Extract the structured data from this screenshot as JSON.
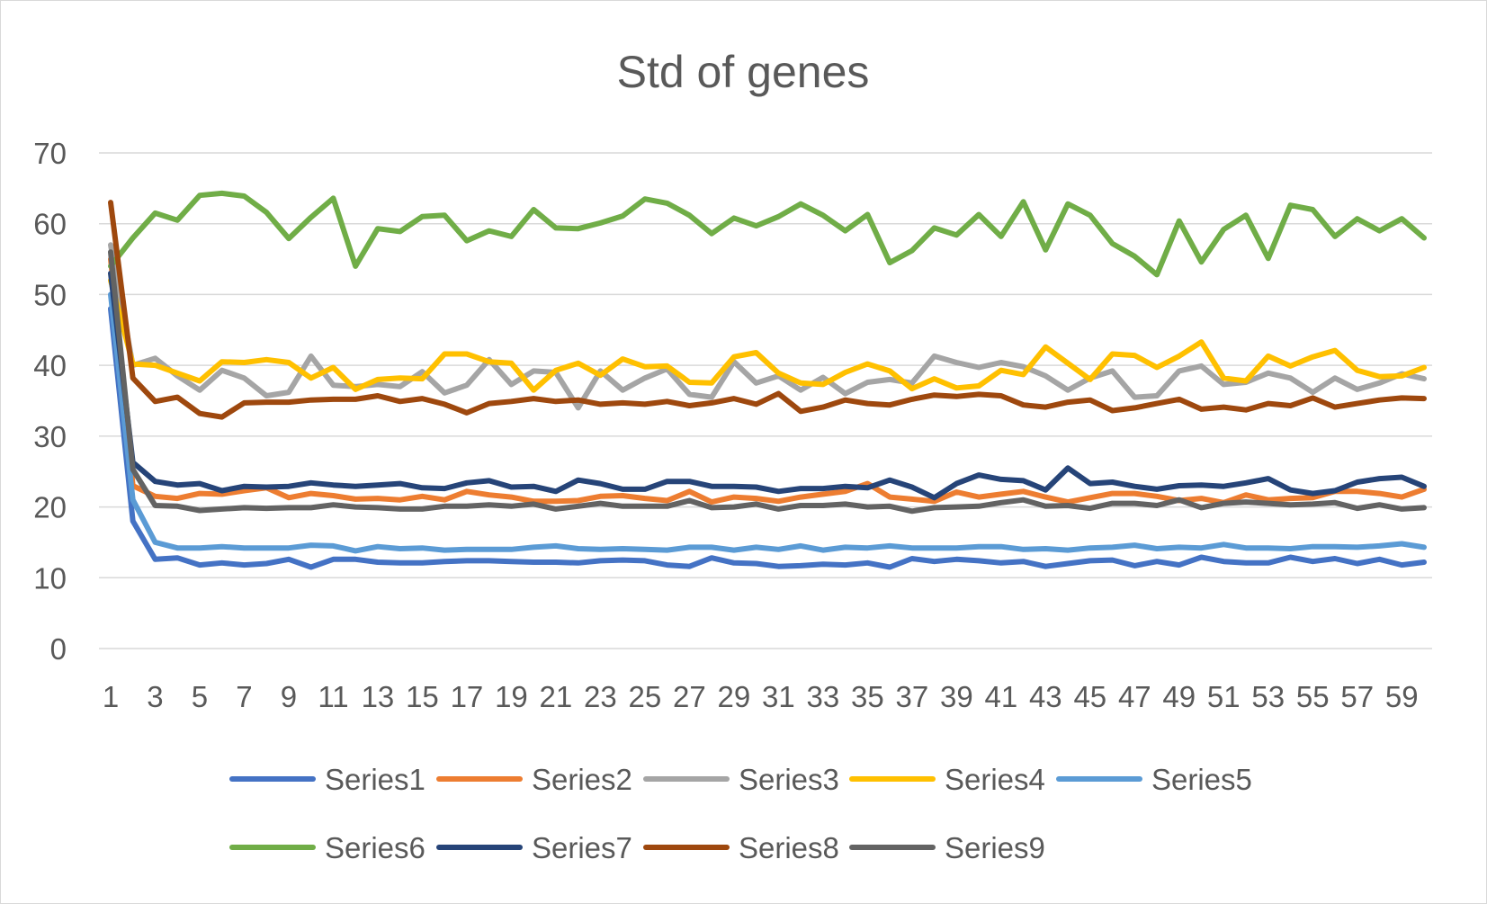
{
  "chart_data": {
    "type": "line",
    "title": "Std of genes",
    "xlabel": "",
    "ylabel": "",
    "ylim": [
      0,
      70
    ],
    "y_ticks": [
      0,
      10,
      20,
      30,
      40,
      50,
      60,
      70
    ],
    "x": [
      1,
      2,
      3,
      4,
      5,
      6,
      7,
      8,
      9,
      10,
      11,
      12,
      13,
      14,
      15,
      16,
      17,
      18,
      19,
      20,
      21,
      22,
      23,
      24,
      25,
      26,
      27,
      28,
      29,
      30,
      31,
      32,
      33,
      34,
      35,
      36,
      37,
      38,
      39,
      40,
      41,
      42,
      43,
      44,
      45,
      46,
      47,
      48,
      49,
      50,
      51,
      52,
      53,
      54,
      55,
      56,
      57,
      58,
      59,
      60
    ],
    "x_tick_labels": [
      "1",
      "3",
      "5",
      "7",
      "9",
      "11",
      "13",
      "15",
      "17",
      "19",
      "21",
      "23",
      "25",
      "27",
      "29",
      "31",
      "33",
      "35",
      "37",
      "39",
      "41",
      "43",
      "45",
      "47",
      "49",
      "51",
      "53",
      "55",
      "57",
      "59"
    ],
    "grid": true,
    "legend_position": "bottom",
    "series": [
      {
        "name": "Series1",
        "color": "#4472C4",
        "values": [
          48,
          18,
          12.6,
          12.8,
          11.8,
          12.1,
          11.8,
          12,
          12.6,
          11.5,
          12.6,
          12.6,
          12.2,
          12.1,
          12.1,
          12.3,
          12.4,
          12.4,
          12.3,
          12.2,
          12.2,
          12.1,
          12.4,
          12.5,
          12.4,
          11.8,
          11.6,
          12.8,
          12.1,
          12,
          11.6,
          11.7,
          11.9,
          11.8,
          12.1,
          11.5,
          12.7,
          12.3,
          12.6,
          12.4,
          12.1,
          12.3,
          11.6,
          12,
          12.4,
          12.5,
          11.7,
          12.3,
          11.8,
          12.9,
          12.3,
          12.1,
          12.1,
          12.9,
          12.3,
          12.7,
          12,
          12.6,
          11.8,
          12.2
        ]
      },
      {
        "name": "Series2",
        "color": "#ED7D31",
        "values": [
          55,
          23,
          21.5,
          21.2,
          21.9,
          21.8,
          22.3,
          22.7,
          21.3,
          21.9,
          21.6,
          21.1,
          21.2,
          21,
          21.5,
          21,
          22.2,
          21.7,
          21.4,
          20.8,
          20.8,
          20.9,
          21.5,
          21.6,
          21.2,
          20.9,
          22.2,
          20.7,
          21.4,
          21.2,
          20.8,
          21.4,
          21.8,
          22.2,
          23.3,
          21.4,
          21.1,
          20.8,
          22.1,
          21.4,
          21.8,
          22.2,
          21.4,
          20.7,
          21.3,
          21.9,
          21.9,
          21.5,
          20.9,
          21.2,
          20.6,
          21.7,
          21,
          21.2,
          21.3,
          22.2,
          22.2,
          21.9,
          21.4,
          22.5
        ]
      },
      {
        "name": "Series3",
        "color": "#A5A5A5",
        "values": [
          57,
          40,
          41,
          38.5,
          36.5,
          39.3,
          38.2,
          35.7,
          36.2,
          41.3,
          37.2,
          37,
          37.3,
          37,
          39.1,
          36.1,
          37.2,
          40.8,
          37.3,
          39.2,
          39,
          34,
          39.2,
          36.5,
          38.2,
          39.5,
          35.9,
          35.5,
          40.5,
          37.5,
          38.5,
          36.5,
          38.3,
          36,
          37.6,
          38,
          37.5,
          41.3,
          40.4,
          39.7,
          40.4,
          39.8,
          38.5,
          36.5,
          38.2,
          39.2,
          35.5,
          35.7,
          39.2,
          39.9,
          37.3,
          37.6,
          38.9,
          38.2,
          36.2,
          38.2,
          36.6,
          37.5,
          38.8,
          38.1
        ]
      },
      {
        "name": "Series4",
        "color": "#FFC000",
        "values": [
          52,
          40.2,
          40,
          38.9,
          37.8,
          40.5,
          40.4,
          40.8,
          40.4,
          38.2,
          39.7,
          36.6,
          38,
          38.2,
          38.1,
          41.6,
          41.6,
          40.5,
          40.3,
          36.5,
          39.3,
          40.3,
          38.6,
          40.9,
          39.8,
          39.9,
          37.6,
          37.5,
          41.2,
          41.8,
          38.9,
          37.5,
          37.3,
          39,
          40.2,
          39.2,
          36.7,
          38.1,
          36.8,
          37.1,
          39.3,
          38.7,
          42.6,
          40.3,
          38,
          41.6,
          41.4,
          39.7,
          41.3,
          43.3,
          38.2,
          37.8,
          41.3,
          39.9,
          41.2,
          42.1,
          39.3,
          38.4,
          38.5,
          39.7
        ]
      },
      {
        "name": "Series5",
        "color": "#5B9BD5",
        "values": [
          50,
          21,
          15,
          14.2,
          14.2,
          14.4,
          14.2,
          14.2,
          14.2,
          14.6,
          14.5,
          13.8,
          14.4,
          14.1,
          14.2,
          13.9,
          14,
          14,
          14,
          14.3,
          14.5,
          14.1,
          14,
          14.1,
          14,
          13.9,
          14.3,
          14.3,
          13.9,
          14.3,
          14,
          14.5,
          13.9,
          14.3,
          14.2,
          14.5,
          14.2,
          14.2,
          14.2,
          14.4,
          14.4,
          14,
          14.1,
          13.9,
          14.2,
          14.3,
          14.6,
          14.1,
          14.3,
          14.2,
          14.7,
          14.2,
          14.2,
          14.1,
          14.4,
          14.4,
          14.3,
          14.5,
          14.8,
          14.3
        ]
      },
      {
        "name": "Series6",
        "color": "#70AD47",
        "values": [
          54,
          58,
          61.5,
          60.5,
          64,
          64.3,
          63.9,
          61.6,
          57.9,
          60.9,
          63.6,
          54,
          59.3,
          58.9,
          61,
          61.2,
          57.6,
          59,
          58.2,
          62,
          59.4,
          59.3,
          60.1,
          61.1,
          63.5,
          62.9,
          61.2,
          58.6,
          60.8,
          59.7,
          61,
          62.8,
          61.2,
          59,
          61.3,
          54.5,
          56.2,
          59.4,
          58.4,
          61.3,
          58.2,
          63.1,
          56.3,
          62.8,
          61.2,
          57.2,
          55.4,
          52.8,
          60.4,
          54.6,
          59.2,
          61.2,
          55.1,
          62.6,
          62,
          58.2,
          60.7,
          59,
          60.7,
          58
        ]
      },
      {
        "name": "Series7",
        "color": "#264478",
        "values": [
          53,
          26.3,
          23.6,
          23.1,
          23.3,
          22.3,
          22.9,
          22.8,
          22.9,
          23.4,
          23.1,
          22.9,
          23.1,
          23.3,
          22.7,
          22.6,
          23.4,
          23.7,
          22.8,
          22.9,
          22.2,
          23.8,
          23.3,
          22.5,
          22.5,
          23.6,
          23.6,
          22.9,
          22.9,
          22.8,
          22.2,
          22.6,
          22.6,
          22.9,
          22.7,
          23.8,
          22.8,
          21.3,
          23.3,
          24.5,
          23.9,
          23.7,
          22.4,
          25.5,
          23.3,
          23.5,
          22.9,
          22.5,
          23,
          23.1,
          22.9,
          23.4,
          24,
          22.4,
          21.9,
          22.3,
          23.5,
          24,
          24.2,
          22.9
        ]
      },
      {
        "name": "Series8",
        "color": "#9E480E",
        "values": [
          63,
          38.2,
          34.9,
          35.5,
          33.2,
          32.7,
          34.7,
          34.8,
          34.8,
          35.1,
          35.2,
          35.2,
          35.7,
          34.9,
          35.3,
          34.5,
          33.3,
          34.6,
          34.9,
          35.3,
          34.9,
          35.1,
          34.5,
          34.7,
          34.5,
          34.9,
          34.3,
          34.7,
          35.3,
          34.5,
          36,
          33.5,
          34.1,
          35.1,
          34.6,
          34.4,
          35.2,
          35.8,
          35.6,
          35.9,
          35.7,
          34.4,
          34.1,
          34.8,
          35.1,
          33.6,
          34,
          34.6,
          35.2,
          33.8,
          34.1,
          33.7,
          34.6,
          34.3,
          35.4,
          34.1,
          34.6,
          35.1,
          35.4,
          35.3
        ]
      },
      {
        "name": "Series9",
        "color": "#636363",
        "values": [
          56,
          25.3,
          20.2,
          20.1,
          19.5,
          19.7,
          19.9,
          19.8,
          19.9,
          19.9,
          20.3,
          20,
          19.9,
          19.7,
          19.7,
          20.1,
          20.1,
          20.3,
          20.1,
          20.4,
          19.7,
          20.1,
          20.5,
          20.1,
          20.1,
          20.1,
          20.9,
          19.9,
          20,
          20.4,
          19.7,
          20.2,
          20.2,
          20.4,
          20,
          20.1,
          19.4,
          19.9,
          20,
          20.1,
          20.6,
          21,
          20.1,
          20.2,
          19.8,
          20.5,
          20.5,
          20.2,
          21,
          19.9,
          20.5,
          20.7,
          20.5,
          20.3,
          20.4,
          20.6,
          19.8,
          20.3,
          19.7,
          19.9
        ]
      }
    ]
  }
}
